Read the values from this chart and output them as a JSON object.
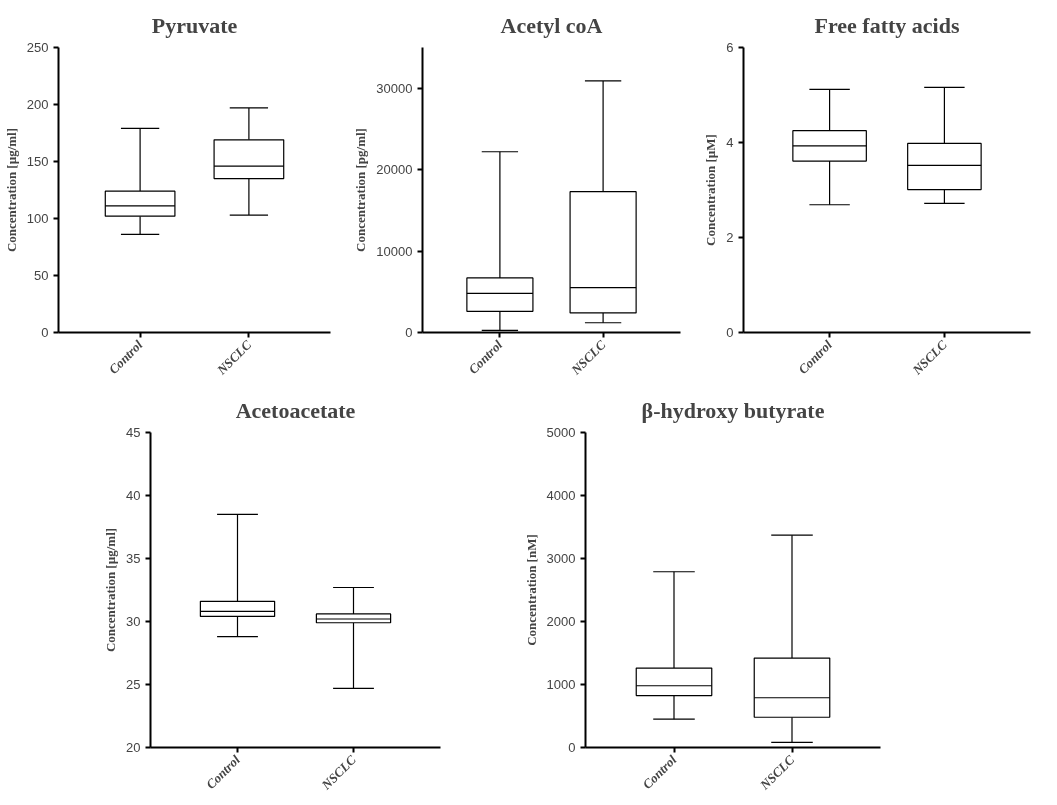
{
  "chart_data": [
    {
      "type": "box",
      "title": "Pyruvate",
      "ylabel": "Concentration [µg/ml]",
      "categories": [
        "Control",
        "NSCLC"
      ],
      "ylim": [
        0,
        250
      ],
      "yticks": [
        0,
        50,
        100,
        150,
        200,
        250
      ],
      "boxes": [
        {
          "low": 86,
          "q1": 102,
          "median": 111,
          "q3": 124,
          "high": 179
        },
        {
          "low": 103,
          "q1": 135,
          "median": 146,
          "q3": 169,
          "high": 197
        }
      ]
    },
    {
      "type": "box",
      "title": "Acetyl coA",
      "ylabel": "Concentration [pg/ml]",
      "categories": [
        "Control",
        "NSCLC"
      ],
      "ylim": [
        0,
        35000
      ],
      "yticks": [
        0,
        10000,
        20000,
        30000
      ],
      "boxes": [
        {
          "low": 250,
          "q1": 2600,
          "median": 4800,
          "q3": 6700,
          "high": 22200
        },
        {
          "low": 1200,
          "q1": 2400,
          "median": 5500,
          "q3": 17300,
          "high": 30900
        }
      ]
    },
    {
      "type": "box",
      "title": "Free fatty acids",
      "ylabel": "Concentration [µM]",
      "categories": [
        "Control",
        "NSCLC"
      ],
      "ylim": [
        0,
        6
      ],
      "yticks": [
        0,
        2,
        4,
        6
      ],
      "boxes": [
        {
          "low": 2.69,
          "q1": 3.61,
          "median": 3.93,
          "q3": 4.25,
          "high": 5.12
        },
        {
          "low": 2.72,
          "q1": 3.01,
          "median": 3.52,
          "q3": 3.98,
          "high": 5.16
        }
      ]
    },
    {
      "type": "box",
      "title": "Acetoacetate",
      "ylabel": "Concentration [µg/ml]",
      "categories": [
        "Control",
        "NSCLC"
      ],
      "ylim": [
        20,
        45
      ],
      "yticks": [
        20,
        25,
        30,
        35,
        40,
        45
      ],
      "boxes": [
        {
          "low": 28.8,
          "q1": 30.4,
          "median": 30.8,
          "q3": 31.6,
          "high": 38.5
        },
        {
          "low": 24.7,
          "q1": 29.9,
          "median": 30.2,
          "q3": 30.6,
          "high": 32.7
        }
      ]
    },
    {
      "type": "box",
      "title": "β-hydroxy butyrate",
      "ylabel": "Concentration [nM]",
      "categories": [
        "Control",
        "NSCLC"
      ],
      "ylim": [
        0,
        5000
      ],
      "yticks": [
        0,
        1000,
        2000,
        3000,
        4000,
        5000
      ],
      "boxes": [
        {
          "low": 450,
          "q1": 825,
          "median": 980,
          "q3": 1260,
          "high": 2790
        },
        {
          "low": 80,
          "q1": 480,
          "median": 790,
          "q3": 1420,
          "high": 3370
        }
      ]
    }
  ]
}
